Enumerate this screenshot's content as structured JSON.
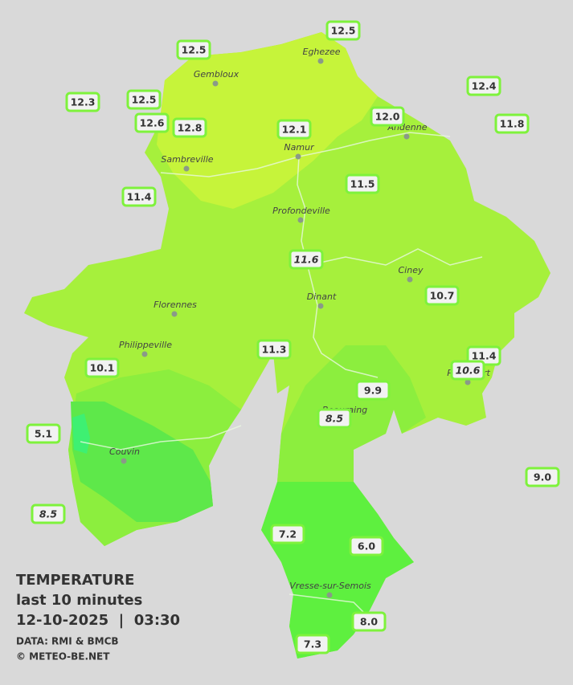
{
  "title": "TEMPERATURE",
  "subtitle": "last 10 minutes",
  "datetime": "12-10-2025  |  03:30",
  "source": "DATA: RMI & BMCB",
  "credit": "© METEO-BE.NET",
  "cities": [
    "Eghezee",
    "Gembloux",
    "Andenne",
    "Namur",
    "Sambreville",
    "Profondeville",
    "Ciney",
    "Dinant",
    "Florennes",
    "Philippeville",
    "Rochefort",
    "Beauraing",
    "Couvin",
    "Vresse-sur-Semois"
  ],
  "stations": [
    {
      "value": "12.5"
    },
    {
      "value": "12.5"
    },
    {
      "value": "12.4"
    },
    {
      "value": "12.3"
    },
    {
      "value": "12.5"
    },
    {
      "value": "12.6"
    },
    {
      "value": "12.8"
    },
    {
      "value": "12.1"
    },
    {
      "value": "12.0"
    },
    {
      "value": "11.8"
    },
    {
      "value": "11.4"
    },
    {
      "value": "11.5"
    },
    {
      "value": "11.6",
      "italic": true
    },
    {
      "value": "10.7"
    },
    {
      "value": "10.1"
    },
    {
      "value": "11.3"
    },
    {
      "value": "11.4"
    },
    {
      "value": "10.6",
      "italic": true
    },
    {
      "value": "9.9"
    },
    {
      "value": "8.5",
      "italic": true
    },
    {
      "value": "5.1"
    },
    {
      "value": "9.0"
    },
    {
      "value": "8.5",
      "italic": true
    },
    {
      "value": "7.2"
    },
    {
      "value": "6.0"
    },
    {
      "value": "8.0"
    },
    {
      "value": "7.3"
    }
  ]
}
